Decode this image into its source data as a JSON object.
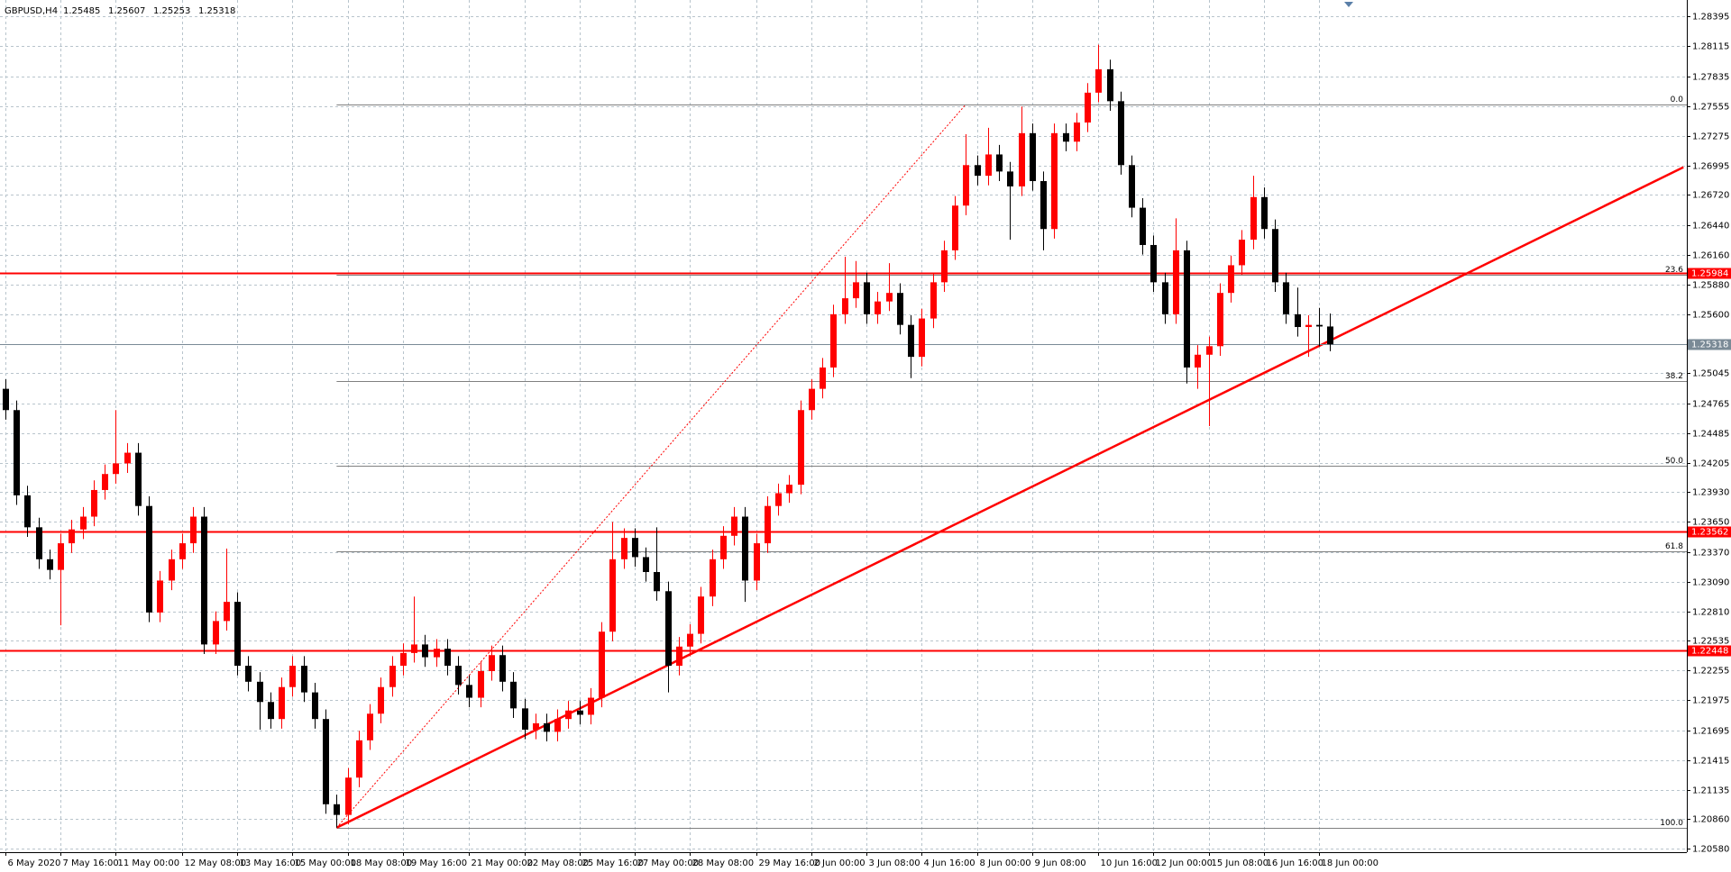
{
  "chart_data": {
    "type": "candlestick",
    "symbol": "GBPUSD,H4",
    "x": [
      "6 May 2020",
      null,
      null,
      null,
      null,
      "7 May 16:00",
      null,
      null,
      null,
      null,
      "11 May 00:00",
      null,
      null,
      null,
      null,
      null,
      "12 May 08:00",
      null,
      null,
      null,
      null,
      "13 May 16:00",
      null,
      null,
      null,
      null,
      "15 May 00:00",
      null,
      null,
      null,
      null,
      "18 May 08:00",
      null,
      null,
      null,
      null,
      "19 May 16:00",
      null,
      null,
      null,
      null,
      null,
      "21 May 00:00",
      null,
      null,
      null,
      null,
      "22 May 08:00",
      null,
      null,
      null,
      null,
      "25 May 16:00",
      null,
      null,
      null,
      null,
      "27 May 00:00",
      null,
      null,
      null,
      null,
      "28 May 08:00",
      null,
      null,
      null,
      null,
      null,
      "29 May 16:00",
      null,
      null,
      null,
      null,
      "2 Jun 00:00",
      null,
      null,
      null,
      null,
      "3 Jun 08:00",
      null,
      null,
      null,
      null,
      "4 Jun 16:00",
      null,
      null,
      null,
      null,
      "8 Jun 00:00",
      null,
      null,
      null,
      null,
      "9 Jun 08:00",
      null,
      null,
      null,
      null,
      null,
      "10 Jun 16:00",
      null,
      null,
      null,
      null,
      "12 Jun 00:00",
      null,
      null,
      null,
      null,
      "15 Jun 08:00",
      null,
      null,
      null,
      null,
      "16 Jun 16:00",
      null,
      null,
      null,
      null,
      "18 Jun 00:00",
      null
    ],
    "open": [
      1.249,
      1.247,
      1.239,
      1.236,
      1.233,
      1.232,
      1.2345,
      1.2358,
      1.237,
      1.2395,
      1.241,
      1.242,
      1.243,
      1.238,
      1.228,
      1.231,
      1.233,
      1.2345,
      1.237,
      1.225,
      1.2272,
      1.229,
      1.223,
      1.2215,
      1.2196,
      1.218,
      1.221,
      1.223,
      1.2205,
      1.218,
      1.21,
      1.209,
      1.2125,
      1.216,
      1.2185,
      1.221,
      1.223,
      1.2242,
      1.225,
      1.2238,
      1.2246,
      1.223,
      1.2212,
      1.22,
      1.2225,
      1.224,
      1.2215,
      1.219,
      1.217,
      1.2176,
      1.2168,
      1.218,
      1.2188,
      1.2184,
      1.22,
      1.2262,
      1.233,
      1.235,
      1.2332,
      1.2318,
      1.23,
      1.223,
      1.2248,
      1.226,
      1.2295,
      1.233,
      1.2352,
      1.237,
      1.231,
      1.2345,
      1.238,
      1.2392,
      1.24,
      1.247,
      1.249,
      1.251,
      1.256,
      1.2575,
      1.259,
      1.256,
      1.2572,
      1.258,
      1.255,
      1.252,
      1.2556,
      1.259,
      1.262,
      1.2662,
      1.27,
      1.269,
      1.271,
      1.2694,
      1.268,
      1.273,
      1.2685,
      1.264,
      1.273,
      1.2722,
      1.274,
      1.2768,
      1.279,
      1.276,
      1.27,
      1.266,
      1.2625,
      1.259,
      1.256,
      1.262,
      1.251,
      1.2522,
      1.253,
      1.258,
      1.2606,
      1.263,
      1.267,
      1.264,
      1.259,
      1.256,
      1.2548,
      1.255,
      1.25485
    ],
    "high": [
      1.2499,
      1.2479,
      1.2399,
      1.2369,
      1.2339,
      1.2354,
      1.2367,
      1.2379,
      1.2404,
      1.2419,
      1.247,
      1.2439,
      1.2439,
      1.2389,
      1.2319,
      1.2339,
      1.2354,
      1.2379,
      1.2379,
      1.2281,
      1.234,
      1.2299,
      1.2239,
      1.2224,
      1.2205,
      1.2219,
      1.2239,
      1.2239,
      1.2214,
      1.2189,
      1.2109,
      1.2134,
      1.2169,
      1.2194,
      1.2219,
      1.2239,
      1.2251,
      1.2295,
      1.2259,
      1.2255,
      1.2255,
      1.2239,
      1.2221,
      1.2234,
      1.2249,
      1.2249,
      1.2224,
      1.2199,
      1.2185,
      1.2185,
      1.2189,
      1.2197,
      1.2197,
      1.2209,
      1.2271,
      1.2365,
      1.2359,
      1.2359,
      1.2341,
      1.236,
      1.2309,
      1.2257,
      1.2269,
      1.2304,
      1.2339,
      1.2361,
      1.2379,
      1.2379,
      1.2354,
      1.2389,
      1.2401,
      1.2409,
      1.2479,
      1.2499,
      1.2519,
      1.2569,
      1.2614,
      1.261,
      1.2599,
      1.2581,
      1.2608,
      1.2589,
      1.2559,
      1.2565,
      1.2599,
      1.2629,
      1.2671,
      1.2729,
      1.2709,
      1.2735,
      1.2719,
      1.2703,
      1.2755,
      1.2739,
      1.2694,
      1.2739,
      1.2739,
      1.2749,
      1.2777,
      1.2813,
      1.2799,
      1.2769,
      1.2709,
      1.2669,
      1.2634,
      1.2599,
      1.265,
      1.2629,
      1.2531,
      1.2539,
      1.2589,
      1.2615,
      1.2639,
      1.269,
      1.2679,
      1.2649,
      1.2599,
      1.2585,
      1.2559,
      1.2566,
      1.25607
    ],
    "low": [
      1.2461,
      1.2381,
      1.2351,
      1.2321,
      1.2311,
      1.2268,
      1.2336,
      1.2349,
      1.2361,
      1.2386,
      1.2401,
      1.2411,
      1.2371,
      1.2271,
      1.2271,
      1.2301,
      1.2321,
      1.2336,
      1.2241,
      1.2241,
      1.2263,
      1.2221,
      1.2206,
      1.217,
      1.2171,
      1.2171,
      1.2201,
      1.2196,
      1.2171,
      1.2091,
      1.2078,
      1.2081,
      1.2116,
      1.2151,
      1.2176,
      1.2201,
      1.2221,
      1.2233,
      1.2229,
      1.2229,
      1.2221,
      1.2203,
      1.2191,
      1.2191,
      1.2216,
      1.2206,
      1.2181,
      1.2161,
      1.2161,
      1.2159,
      1.2159,
      1.2171,
      1.2175,
      1.2175,
      1.2191,
      1.2253,
      1.2321,
      1.2323,
      1.2309,
      1.2291,
      1.2205,
      1.2221,
      1.2239,
      1.2251,
      1.2286,
      1.2321,
      1.2343,
      1.229,
      1.2301,
      1.2336,
      1.2371,
      1.2383,
      1.2391,
      1.2461,
      1.2481,
      1.2501,
      1.2551,
      1.2566,
      1.2551,
      1.2551,
      1.2563,
      1.2541,
      1.25,
      1.2511,
      1.2547,
      1.2581,
      1.2611,
      1.2653,
      1.2681,
      1.2681,
      1.2685,
      1.263,
      1.2671,
      1.2676,
      1.262,
      1.2631,
      1.2713,
      1.2713,
      1.2731,
      1.2759,
      1.2751,
      1.2691,
      1.2651,
      1.2616,
      1.2581,
      1.2551,
      1.2551,
      1.2495,
      1.249,
      1.2455,
      1.2521,
      1.2571,
      1.2597,
      1.2621,
      1.2631,
      1.2581,
      1.2551,
      1.2539,
      1.252,
      1.253,
      1.25253
    ],
    "close": [
      1.247,
      1.239,
      1.236,
      1.233,
      1.232,
      1.2345,
      1.2358,
      1.237,
      1.2395,
      1.241,
      1.242,
      1.243,
      1.238,
      1.228,
      1.231,
      1.233,
      1.2345,
      1.237,
      1.225,
      1.2272,
      1.229,
      1.223,
      1.2215,
      1.2196,
      1.218,
      1.221,
      1.223,
      1.2205,
      1.218,
      1.21,
      1.209,
      1.2125,
      1.216,
      1.2185,
      1.221,
      1.223,
      1.2242,
      1.225,
      1.2238,
      1.2246,
      1.223,
      1.2212,
      1.22,
      1.2225,
      1.224,
      1.2215,
      1.219,
      1.217,
      1.2176,
      1.2168,
      1.218,
      1.2188,
      1.2184,
      1.22,
      1.2262,
      1.233,
      1.235,
      1.2332,
      1.2318,
      1.23,
      1.223,
      1.2248,
      1.226,
      1.2295,
      1.233,
      1.2352,
      1.237,
      1.231,
      1.2345,
      1.238,
      1.2392,
      1.24,
      1.247,
      1.249,
      1.251,
      1.256,
      1.2575,
      1.259,
      1.256,
      1.2572,
      1.258,
      1.255,
      1.252,
      1.2556,
      1.259,
      1.262,
      1.2662,
      1.27,
      1.269,
      1.271,
      1.2694,
      1.268,
      1.273,
      1.2685,
      1.264,
      1.273,
      1.2722,
      1.274,
      1.2768,
      1.279,
      1.276,
      1.27,
      1.266,
      1.2625,
      1.259,
      1.256,
      1.262,
      1.251,
      1.2522,
      1.253,
      1.258,
      1.2606,
      1.263,
      1.267,
      1.264,
      1.259,
      1.256,
      1.2548,
      1.255,
      1.25485,
      1.25318
    ],
    "up_color": "#ff0000",
    "down_color": "#000000",
    "ylim": [
      1.2055,
      1.2855
    ],
    "yticks": [
      1.28395,
      1.28115,
      1.27835,
      1.27555,
      1.27275,
      1.26995,
      {
        "value": 1.2672,
        "label": "1.26720"
      },
      {
        "value": 1.2644,
        "label": "1.26440"
      },
      {
        "value": 1.2616,
        "label": "1.26160"
      },
      {
        "value": 1.2588,
        "label": "1.25880"
      },
      {
        "value": 1.256,
        "label": "1.25600"
      },
      1.25045,
      1.24765,
      1.24485,
      1.24205,
      {
        "value": 1.2393,
        "label": "1.23930"
      },
      {
        "value": 1.2365,
        "label": "1.23650"
      },
      {
        "value": 1.2337,
        "label": "1.23370"
      },
      {
        "value": 1.2309,
        "label": "1.23090"
      },
      {
        "value": 1.2281,
        "label": "1.22810"
      },
      1.22535,
      1.22255,
      1.21975,
      1.21695,
      1.21415,
      1.21135,
      {
        "value": 1.2086,
        "label": "1.20860"
      },
      {
        "value": 1.2058,
        "label": "1.20580"
      }
    ],
    "grid": true,
    "levels": {
      "color": "#ff0000",
      "values": [
        1.25984,
        1.23562,
        1.22448
      ]
    },
    "trendline": {
      "color": "#ff0000",
      "points": [
        {
          "index": 30,
          "price": 1.2078
        },
        {
          "index": 152,
          "price": 1.2698
        }
      ]
    },
    "fibonacci": {
      "color": "#808080",
      "anchor_color": "#ff0000",
      "anchors": [
        {
          "index": 30,
          "price": 1.2078
        },
        {
          "index": 87,
          "price": 1.2757
        }
      ],
      "levels": [
        {
          "label": "0.0",
          "price": 1.2757
        },
        {
          "label": "23.6",
          "price": 1.25968
        },
        {
          "label": "38.2",
          "price": 1.24976
        },
        {
          "label": "50.0",
          "price": 1.24175
        },
        {
          "label": "61.8",
          "price": 1.23374
        },
        {
          "label": "100.0",
          "price": 1.2078
        }
      ]
    }
  }
}
